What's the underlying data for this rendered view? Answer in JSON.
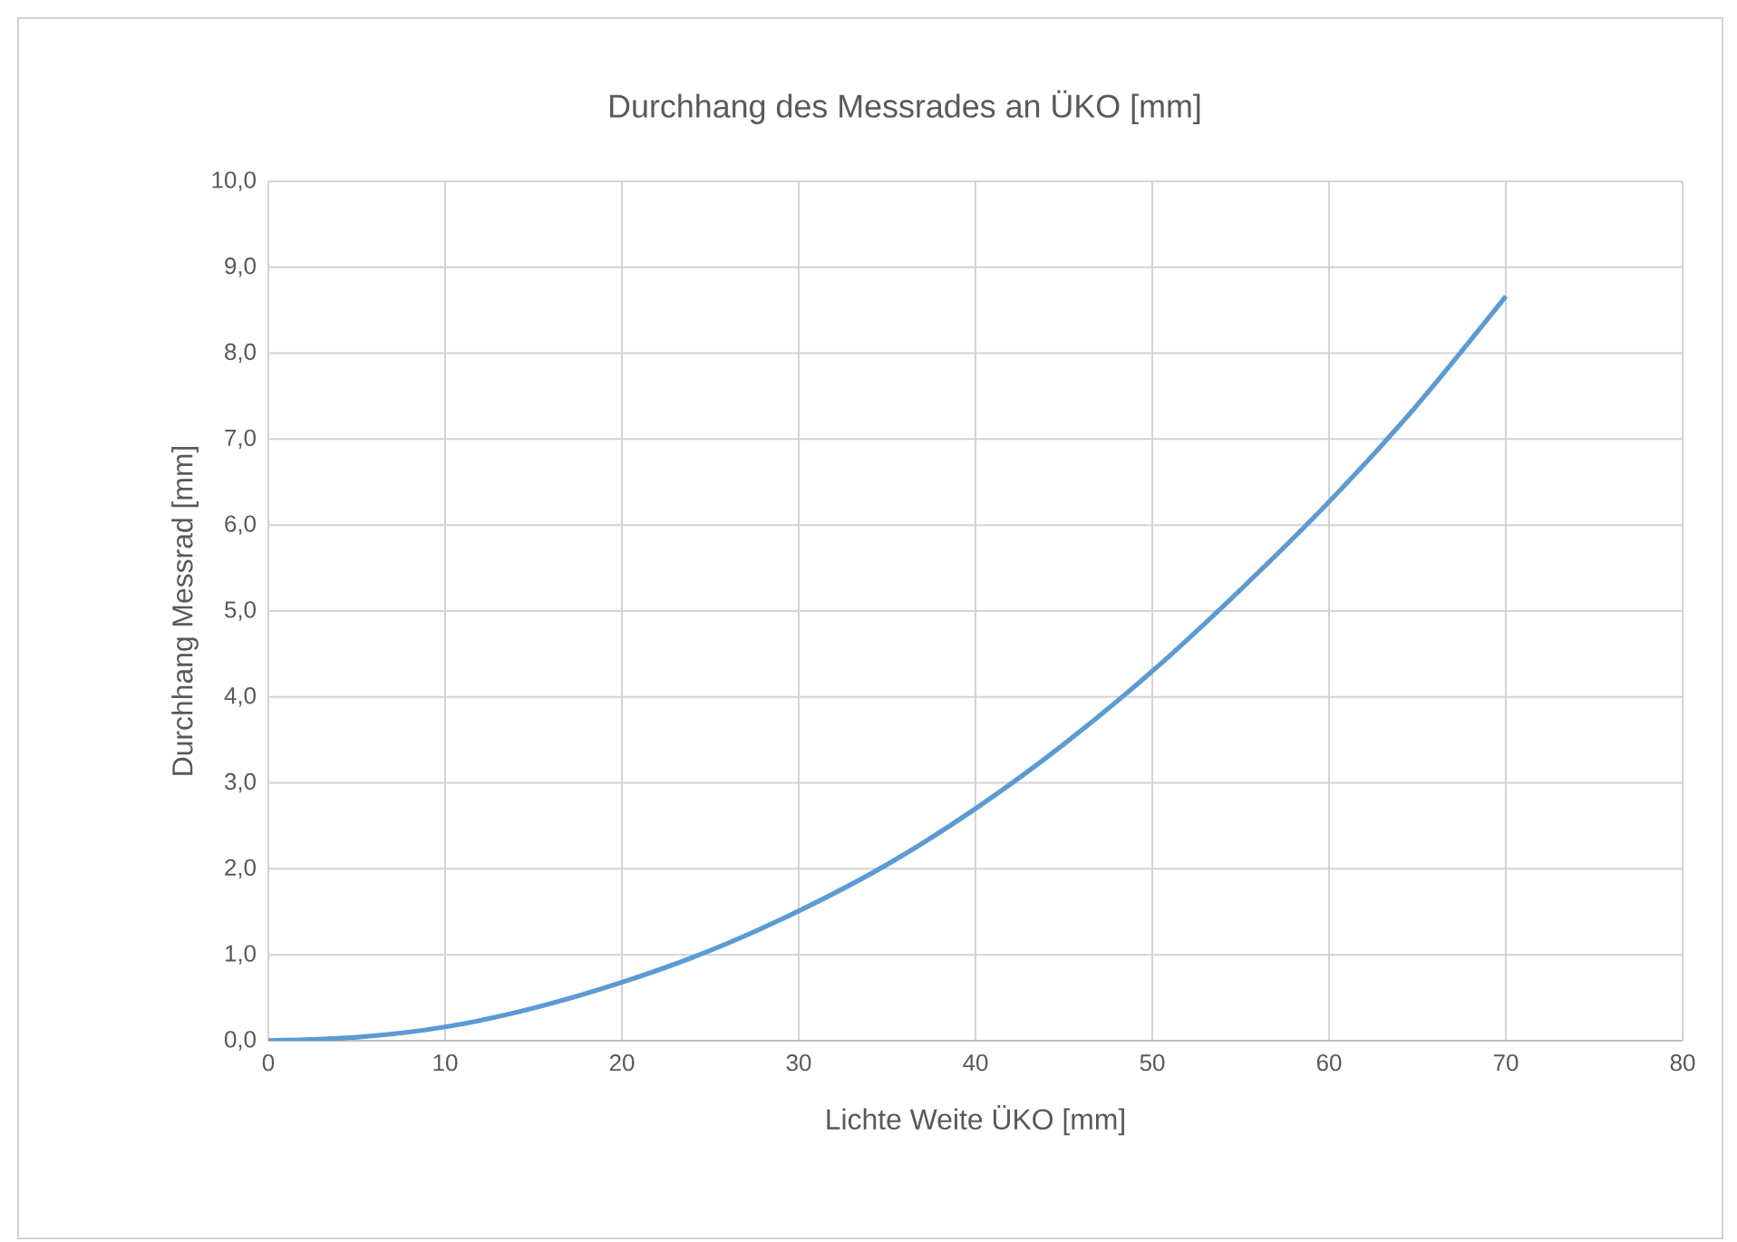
{
  "chart_data": {
    "type": "line",
    "title": "Durchhang des Messrades an ÜKO [mm]",
    "xlabel": "Lichte Weite ÜKO [mm]",
    "ylabel": "Durchhang Messrad [mm]",
    "x": [
      0,
      5,
      10,
      15,
      20,
      25,
      30,
      35,
      40,
      45,
      50,
      55,
      60,
      65,
      70
    ],
    "series": [
      {
        "color": "#5b9bd5",
        "values": [
          0,
          0.04,
          0.16,
          0.38,
          0.68,
          1.05,
          1.51,
          2.05,
          2.7,
          3.45,
          4.3,
          5.25,
          6.27,
          7.4,
          8.66
        ]
      }
    ],
    "xlim": [
      0,
      80
    ],
    "ylim": [
      0,
      10
    ],
    "xticks": [
      0,
      10,
      20,
      30,
      40,
      50,
      60,
      70,
      80
    ],
    "yticks": [
      {
        "value": 0,
        "label": "0,0"
      },
      {
        "value": 1,
        "label": "1,0"
      },
      {
        "value": 2,
        "label": "2,0"
      },
      {
        "value": 3,
        "label": "3,0"
      },
      {
        "value": 4,
        "label": "4,0"
      },
      {
        "value": 5,
        "label": "5,0"
      },
      {
        "value": 6,
        "label": "6,0"
      },
      {
        "value": 7,
        "label": "7,0"
      },
      {
        "value": 8,
        "label": "8,0"
      },
      {
        "value": 9,
        "label": "9,0"
      },
      {
        "value": 10,
        "label": "10,0"
      }
    ],
    "grid": true
  }
}
